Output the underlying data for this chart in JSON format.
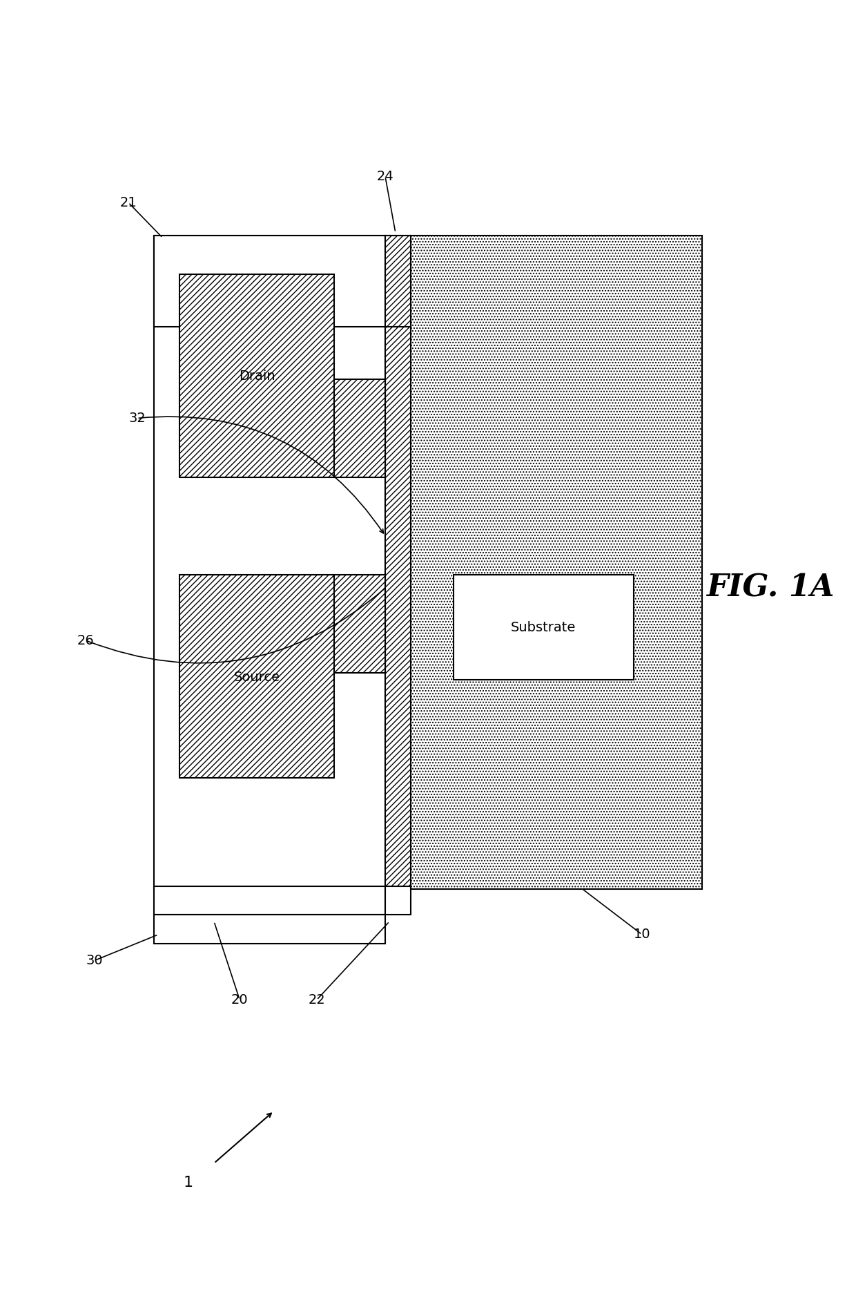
{
  "fig_label": "FIG. 1A",
  "device_label": "1",
  "background_color": "#ffffff",
  "labels": {
    "drain": "Drain",
    "source": "Source",
    "substrate": "Substrate"
  },
  "lw": 1.5
}
